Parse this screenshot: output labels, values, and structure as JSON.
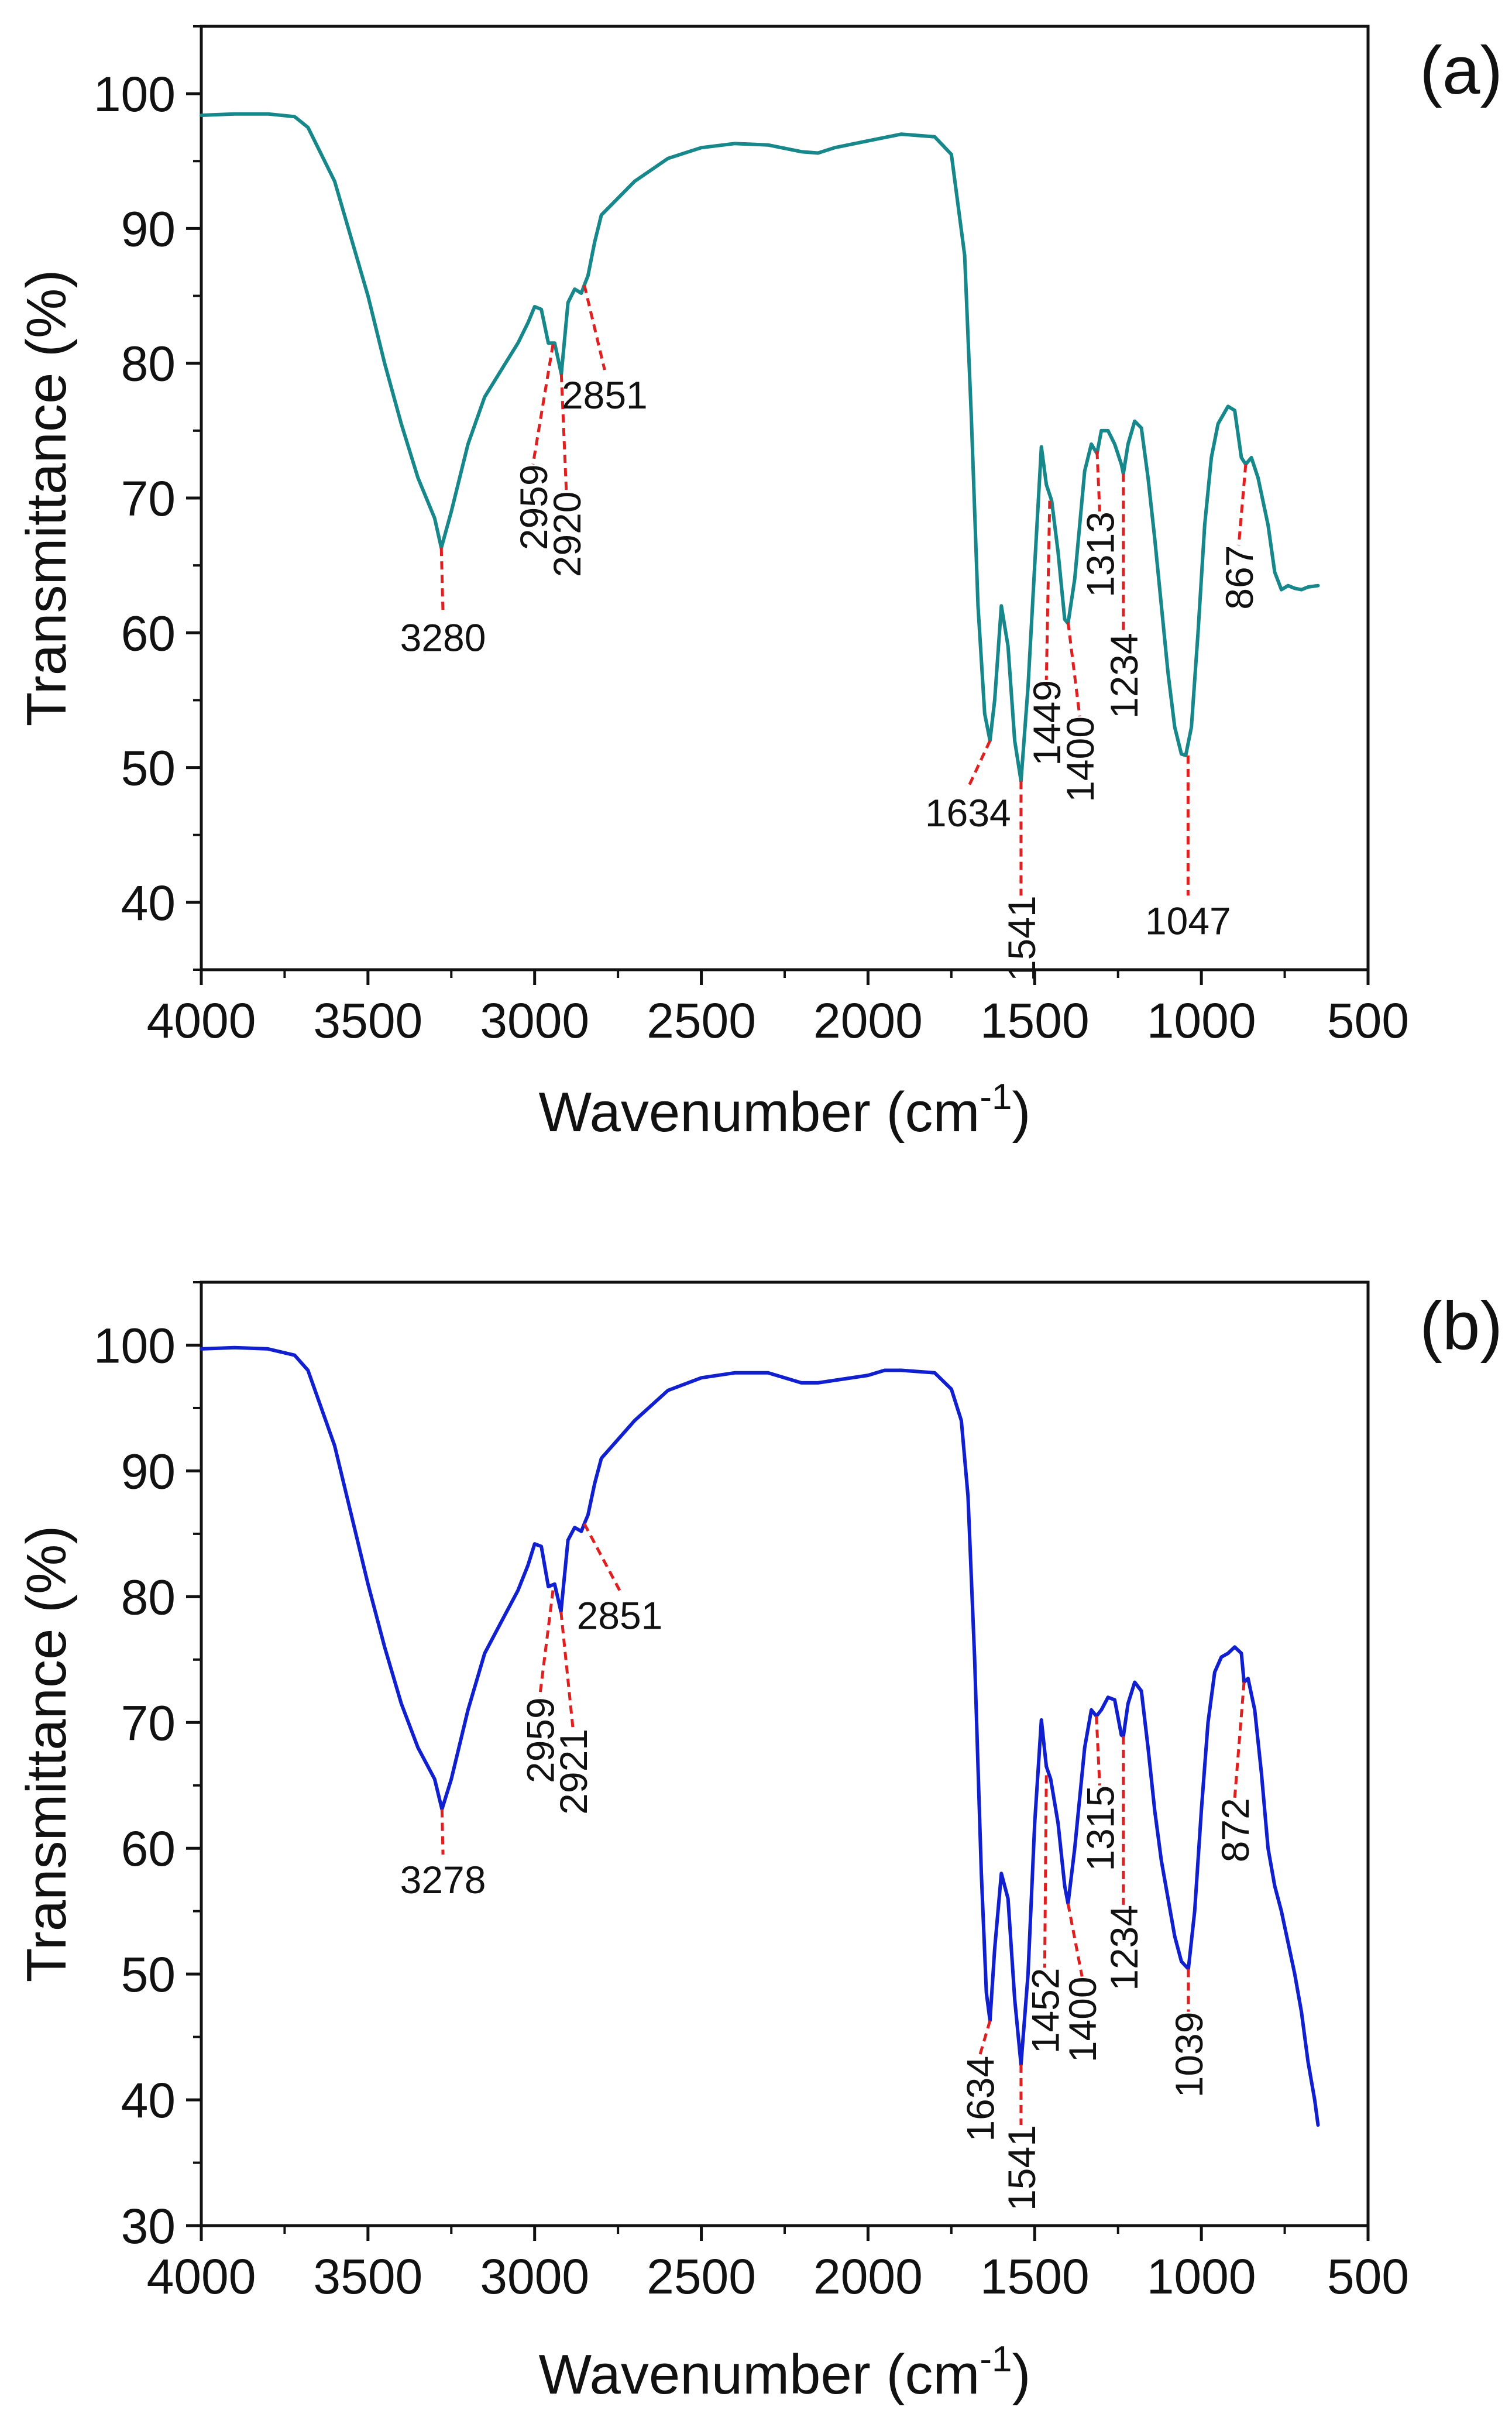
{
  "colors": {
    "axis": "#111111",
    "annotation": "#e02020",
    "text": "#111111"
  },
  "chart_data": [
    {
      "panel_label": "(a)",
      "type": "line",
      "xlabel": "Wavenumber (cm",
      "xlabel_sup": "-1",
      "xlabel_tail": ")",
      "ylabel": "Transmittance (%)",
      "xlim": [
        4000,
        500
      ],
      "x_reversed": true,
      "ylim": [
        35,
        105
      ],
      "xticks": [
        4000,
        3500,
        3000,
        2500,
        2000,
        1500,
        1000,
        500
      ],
      "yticks": [
        40,
        50,
        60,
        70,
        80,
        90,
        100
      ],
      "grid": false,
      "color": "#16878a",
      "series": [
        {
          "x": [
            4000,
            3900,
            3800,
            3720,
            3680,
            3600,
            3500,
            3450,
            3400,
            3350,
            3300,
            3280,
            3250,
            3200,
            3150,
            3100,
            3050,
            3020,
            3000,
            2980,
            2959,
            2940,
            2920,
            2900,
            2880,
            2860,
            2851,
            2840,
            2820,
            2800,
            2700,
            2600,
            2500,
            2400,
            2300,
            2200,
            2150,
            2100,
            2000,
            1900,
            1800,
            1750,
            1710,
            1690,
            1670,
            1650,
            1634,
            1620,
            1600,
            1580,
            1560,
            1541,
            1520,
            1500,
            1480,
            1465,
            1449,
            1430,
            1410,
            1400,
            1380,
            1350,
            1330,
            1313,
            1300,
            1280,
            1260,
            1240,
            1234,
            1220,
            1200,
            1180,
            1160,
            1140,
            1120,
            1100,
            1080,
            1060,
            1047,
            1030,
            1010,
            990,
            970,
            950,
            920,
            900,
            880,
            867,
            850,
            830,
            800,
            780,
            760,
            740,
            720,
            700,
            680,
            650
          ],
          "y": [
            98.4,
            98.5,
            98.5,
            98.3,
            97.5,
            93.5,
            85,
            80,
            75.5,
            71.5,
            68.5,
            66.3,
            69,
            74,
            77.5,
            79.5,
            81.5,
            83,
            84.2,
            84,
            81.5,
            81.5,
            79.2,
            84.5,
            85.5,
            85.2,
            85.8,
            86.5,
            89,
            91,
            93.5,
            95.2,
            96,
            96.3,
            96.2,
            95.7,
            95.6,
            96,
            96.5,
            97,
            96.8,
            95.5,
            88,
            76,
            62,
            54,
            52,
            55,
            62,
            59,
            52,
            49,
            56,
            65,
            73.8,
            71,
            69.8,
            66,
            61,
            60.7,
            64,
            72,
            74,
            73.3,
            75,
            75,
            74,
            72.5,
            71.8,
            74,
            75.7,
            75.2,
            71.5,
            67,
            62,
            57,
            53,
            51,
            50.9,
            53,
            60,
            68,
            73,
            75.5,
            76.8,
            76.5,
            73,
            72.5,
            73,
            71.5,
            68,
            64.5,
            63.2,
            63.5,
            63.3,
            63.2,
            63.4,
            63.5
          ]
        }
      ],
      "annotations": [
        {
          "text": "3280",
          "peak": [
            3280,
            66.3
          ],
          "label": [
            3275,
            61.5
          ],
          "rotated": false
        },
        {
          "text": "2959",
          "peak": [
            2945,
            81.4
          ],
          "label": [
            3005,
            72.5
          ],
          "rotated": true
        },
        {
          "text": "2920",
          "peak": [
            2920,
            79.2
          ],
          "label": [
            2905,
            70.5
          ],
          "rotated": true
        },
        {
          "text": "2851",
          "peak": [
            2851,
            85.8
          ],
          "label": [
            2790,
            79.5
          ],
          "rotated": false
        },
        {
          "text": "1634",
          "peak": [
            1634,
            52
          ],
          "label": [
            1700,
            48.5
          ],
          "rotated": false
        },
        {
          "text": "1541",
          "peak": [
            1541,
            49
          ],
          "label": [
            1541,
            40.5
          ],
          "rotated": true
        },
        {
          "text": "1449",
          "peak": [
            1455,
            69.8
          ],
          "label": [
            1465,
            56.5
          ],
          "rotated": true
        },
        {
          "text": "1400",
          "peak": [
            1400,
            60.8
          ],
          "label": [
            1365,
            53.8
          ],
          "rotated": true
        },
        {
          "text": "1313",
          "peak": [
            1313,
            73.5
          ],
          "label": [
            1305,
            69
          ],
          "rotated": true
        },
        {
          "text": "1234",
          "peak": [
            1234,
            71.8
          ],
          "label": [
            1234,
            60
          ],
          "rotated": true
        },
        {
          "text": "1047",
          "peak": [
            1040,
            50.9
          ],
          "label": [
            1040,
            40.5
          ],
          "rotated": false
        },
        {
          "text": "867",
          "peak": [
            867,
            72.5
          ],
          "label": [
            888,
            66.5
          ],
          "rotated": true
        }
      ]
    },
    {
      "panel_label": "(b)",
      "type": "line",
      "xlabel": "Wavenumber (cm",
      "xlabel_sup": "-1",
      "xlabel_tail": ")",
      "ylabel": "Transmittance (%)",
      "xlim": [
        4000,
        500
      ],
      "x_reversed": true,
      "ylim": [
        30,
        105
      ],
      "xticks": [
        4000,
        3500,
        3000,
        2500,
        2000,
        1500,
        1000,
        500
      ],
      "yticks": [
        30,
        40,
        50,
        60,
        70,
        80,
        90,
        100
      ],
      "grid": false,
      "color": "#1020d0",
      "series": [
        {
          "x": [
            4000,
            3900,
            3800,
            3720,
            3680,
            3600,
            3500,
            3450,
            3400,
            3350,
            3300,
            3278,
            3250,
            3200,
            3150,
            3100,
            3050,
            3020,
            3000,
            2980,
            2959,
            2940,
            2921,
            2900,
            2880,
            2860,
            2851,
            2840,
            2820,
            2800,
            2700,
            2600,
            2500,
            2400,
            2300,
            2200,
            2150,
            2100,
            2000,
            1950,
            1900,
            1800,
            1750,
            1720,
            1700,
            1680,
            1660,
            1645,
            1634,
            1620,
            1600,
            1580,
            1560,
            1541,
            1520,
            1500,
            1480,
            1465,
            1452,
            1430,
            1410,
            1400,
            1380,
            1350,
            1330,
            1315,
            1300,
            1280,
            1260,
            1240,
            1234,
            1220,
            1200,
            1180,
            1160,
            1140,
            1120,
            1100,
            1080,
            1060,
            1039,
            1020,
            1000,
            980,
            960,
            940,
            920,
            900,
            880,
            872,
            860,
            840,
            820,
            800,
            780,
            760,
            740,
            720,
            700,
            680,
            660,
            650
          ],
          "y": [
            99.7,
            99.8,
            99.7,
            99.2,
            98,
            92,
            81,
            76,
            71.5,
            68,
            65.5,
            63.1,
            65.5,
            71,
            75.5,
            78,
            80.5,
            82.5,
            84.2,
            84,
            80.8,
            81,
            78.8,
            84.5,
            85.5,
            85.2,
            85.8,
            86.5,
            89,
            91,
            94,
            96.4,
            97.4,
            97.8,
            97.8,
            97,
            97,
            97.2,
            97.6,
            98,
            98,
            97.8,
            96.5,
            94,
            88,
            75,
            58,
            48.5,
            46.3,
            52,
            58,
            56,
            48,
            42.8,
            50,
            62,
            70.2,
            66.5,
            65.5,
            62,
            57,
            55.6,
            60,
            68,
            71,
            70.5,
            71,
            72,
            71.8,
            69,
            68.9,
            71.5,
            73.2,
            72.5,
            68,
            63,
            59,
            56,
            53,
            51,
            50.4,
            55,
            63,
            70,
            74,
            75.2,
            75.5,
            76,
            75.5,
            73.2,
            73.5,
            71,
            66,
            60,
            57,
            55,
            52.5,
            50,
            47,
            43,
            40,
            38
          ]
        }
      ],
      "annotations": [
        {
          "text": "3278",
          "peak": [
            3278,
            63.1
          ],
          "label": [
            3275,
            59.5
          ],
          "rotated": false
        },
        {
          "text": "2959",
          "peak": [
            2945,
            80.5
          ],
          "label": [
            2985,
            72
          ],
          "rotated": true
        },
        {
          "text": "2921",
          "peak": [
            2921,
            78.8
          ],
          "label": [
            2885,
            69.5
          ],
          "rotated": true
        },
        {
          "text": "2851",
          "peak": [
            2851,
            85.8
          ],
          "label": [
            2745,
            80.5
          ],
          "rotated": false
        },
        {
          "text": "1634",
          "peak": [
            1634,
            46.3
          ],
          "label": [
            1665,
            43.5
          ],
          "rotated": true
        },
        {
          "text": "1541",
          "peak": [
            1541,
            42.8
          ],
          "label": [
            1541,
            38
          ],
          "rotated": true
        },
        {
          "text": "1452",
          "peak": [
            1465,
            65.8
          ],
          "label": [
            1470,
            50.5
          ],
          "rotated": true
        },
        {
          "text": "1400",
          "peak": [
            1400,
            55.6
          ],
          "label": [
            1358,
            49.8
          ],
          "rotated": true
        },
        {
          "text": "1315",
          "peak": [
            1315,
            70.5
          ],
          "label": [
            1305,
            65
          ],
          "rotated": true
        },
        {
          "text": "1234",
          "peak": [
            1234,
            68.9
          ],
          "label": [
            1234,
            55.5
          ],
          "rotated": true
        },
        {
          "text": "1039",
          "peak": [
            1039,
            50.4
          ],
          "label": [
            1039,
            47
          ],
          "rotated": true
        },
        {
          "text": "872",
          "peak": [
            872,
            73.2
          ],
          "label": [
            900,
            64
          ],
          "rotated": true
        }
      ]
    }
  ]
}
